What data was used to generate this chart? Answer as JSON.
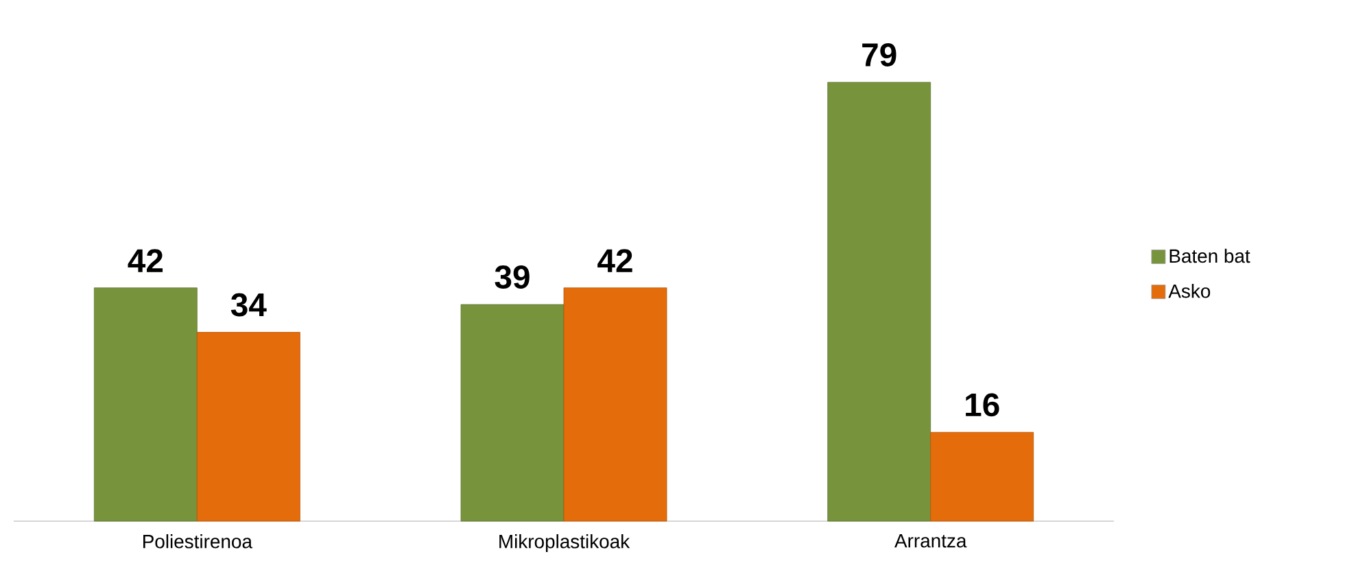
{
  "chart_data": {
    "type": "bar",
    "categories": [
      "Poliestirenoa",
      "Mikroplastikoak",
      "Arrantza"
    ],
    "series": [
      {
        "name": "Baten bat",
        "color": "#77933c",
        "values": [
          42,
          39,
          79
        ]
      },
      {
        "name": "Asko",
        "color": "#e46c0a",
        "values": [
          34,
          42,
          16
        ]
      }
    ],
    "data_labels": true,
    "legend": "right"
  }
}
